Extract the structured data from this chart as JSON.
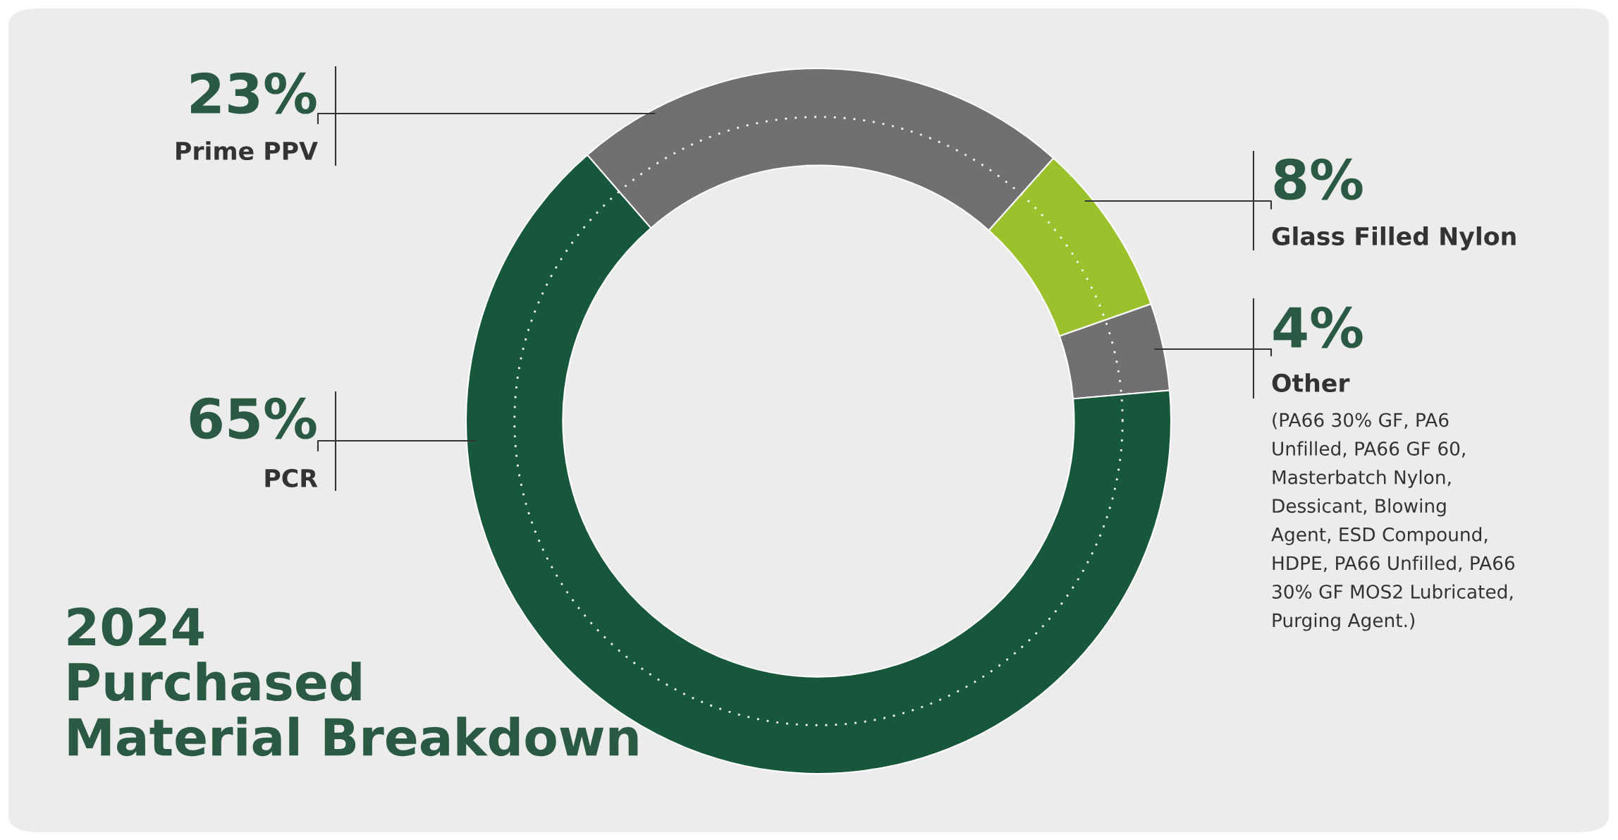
{
  "chart_data": {
    "type": "donut",
    "title": "2024\nPurchased\nMaterial Breakdown",
    "categories": [
      "Prime PPV",
      "Glass Filled Nylon",
      "Other",
      "PCR"
    ],
    "values": [
      23,
      8,
      4,
      65
    ],
    "value_labels": [
      "23%",
      "8%",
      "4%",
      "65%"
    ],
    "colors": [
      "#707070",
      "#9bc22c",
      "#707070",
      "#17573b"
    ],
    "annotations": [
      "(PA66 30% GF, PA6\nUnfilled, PA66 GF 60,\nMasterbatch Nylon,\nDessicant, Blowing\nAgent, ESD Compound,\nHDPE, PA66 Unfilled, PA66\n30% GF MOS2 Lubricated,\nPurging Agent.)"
    ],
    "legend": false
  }
}
